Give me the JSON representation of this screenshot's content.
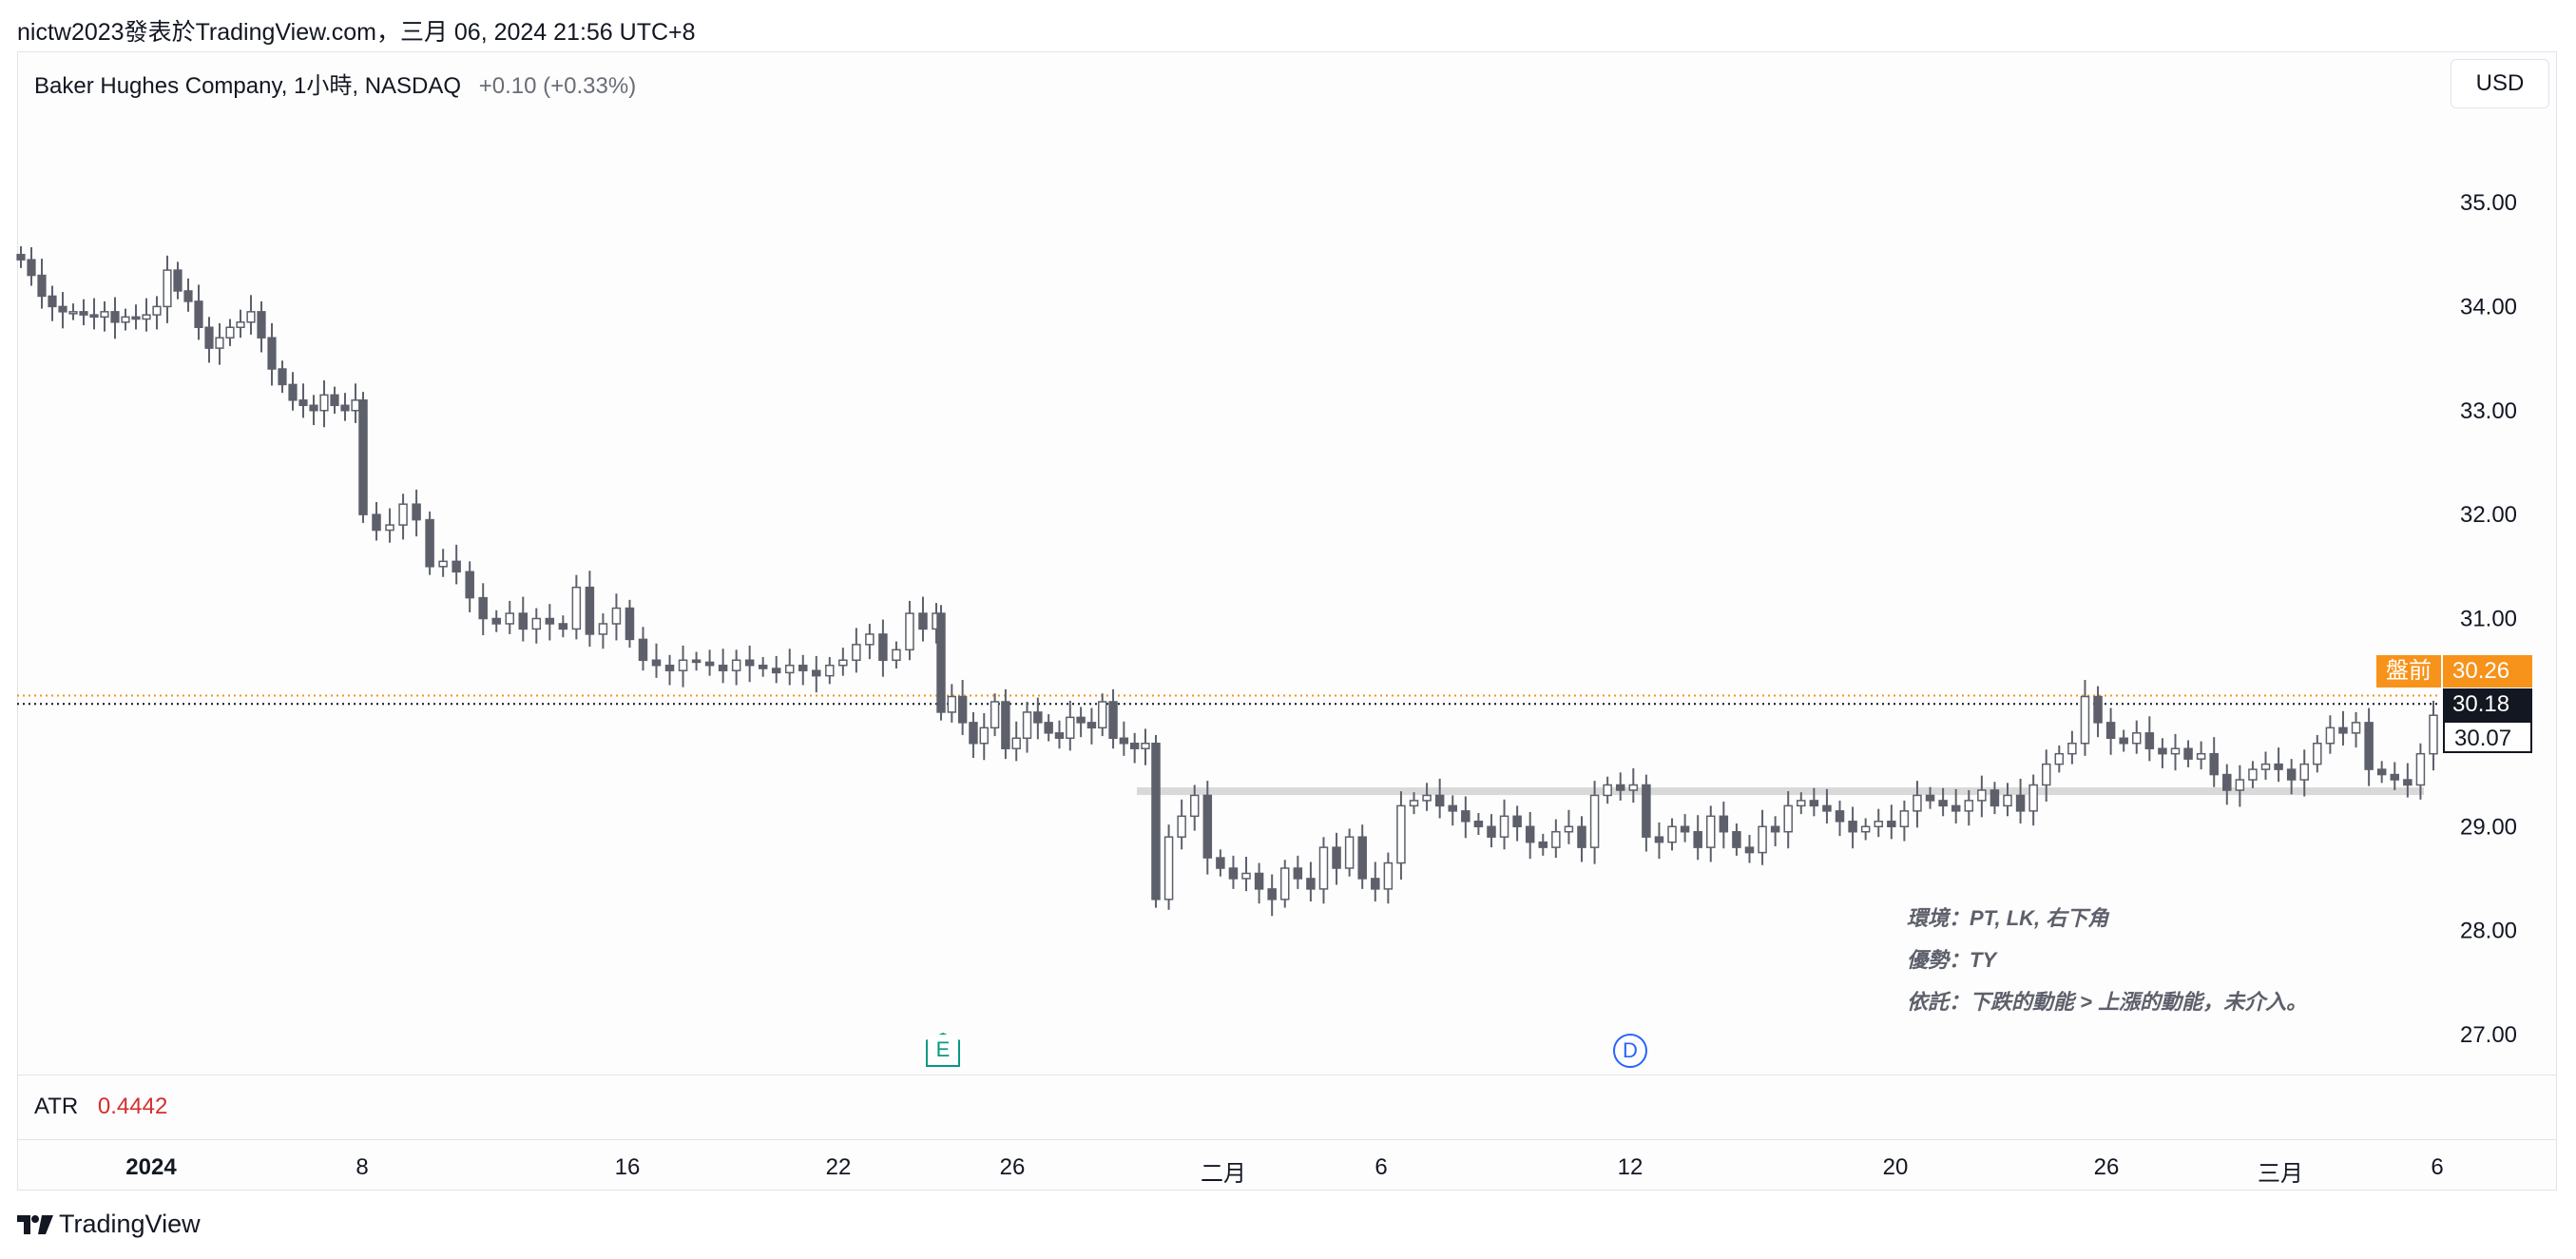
{
  "header": {
    "publisher": "nictw2023發表於TradingView.com，三月 06, 2024 21:56 UTC+8"
  },
  "legend": {
    "symbol": "Baker Hughes Company, 1小時, NASDAQ",
    "change": "+0.10 (+0.33%)"
  },
  "currency_button": "USD",
  "indicator": {
    "name": "ATR",
    "value": "0.4442"
  },
  "notes": {
    "line1": "環境：PT, LK, 右下角",
    "line2": "優勢：TY",
    "line3": "依託：下跌的動能 > 上漲的動能，未介入。"
  },
  "events": {
    "earnings": "E",
    "dividend": "D"
  },
  "tags": {
    "premarket_label": "盤前",
    "premarket_price": "30.26",
    "last_price": "30.18",
    "close_price": "30.07"
  },
  "footer": {
    "brand": "TradingView"
  },
  "colors": {
    "candle_body": "#5d606b",
    "candle_up_fill": "#ffffff",
    "premarket_line": "#f7931a",
    "last_line": "#131722",
    "zone": "#d9d9d9",
    "atr_value": "#d32f2f"
  },
  "chart_data": {
    "type": "candlestick",
    "title": "Baker Hughes Company, 1小時, NASDAQ",
    "ylim": [
      26.6,
      35.9
    ],
    "y_ticks": [
      "35.00",
      "34.00",
      "33.00",
      "32.00",
      "31.00",
      "29.00",
      "28.00",
      "27.00"
    ],
    "x_labels": [
      "2024",
      "8",
      "16",
      "22",
      "26",
      "二月",
      "6",
      "12",
      "20",
      "26",
      "三月",
      "6"
    ],
    "horizontal_levels": [
      {
        "name": "盤前",
        "value": 30.26
      },
      {
        "name": "last",
        "value": 30.18
      }
    ],
    "zone_level": 29.34,
    "series": [
      {
        "segment": "jan-early",
        "close": [
          34.45,
          34.3,
          34.1,
          34.0,
          33.95,
          33.95,
          33.92,
          33.9,
          33.95,
          33.85,
          33.9,
          33.88,
          33.92,
          34.0,
          34.35,
          34.15,
          34.05,
          33.8,
          33.6,
          33.7,
          33.8,
          33.85,
          33.95,
          33.7,
          33.4,
          33.25,
          33.1,
          33.05,
          33.0,
          33.15,
          33.05,
          33.0,
          33.1
        ]
      },
      {
        "segment": "jan-gap",
        "close": [
          32.0,
          31.85,
          31.9,
          32.1,
          31.95,
          31.5,
          31.55,
          31.45,
          31.2,
          31.0,
          30.95,
          31.05,
          30.9,
          31.0,
          30.95,
          30.9,
          31.3,
          30.85,
          30.95,
          31.1,
          30.8,
          30.6,
          30.55,
          30.5,
          30.6,
          30.58,
          30.55,
          30.5,
          30.6,
          30.55,
          30.52,
          30.48,
          30.55,
          30.5,
          30.45,
          30.55,
          30.6,
          30.75,
          30.85,
          30.6,
          30.7,
          31.05,
          30.9,
          31.05
        ]
      },
      {
        "segment": "jan-late",
        "close": [
          30.1,
          30.25,
          30.0,
          29.8,
          29.95,
          30.2,
          29.75,
          29.85,
          30.1,
          30.0,
          29.9,
          29.85,
          30.05,
          30.0,
          29.95,
          30.2,
          29.85,
          29.8,
          29.75,
          29.8
        ]
      },
      {
        "segment": "feb",
        "close": [
          28.3,
          28.9,
          29.1,
          29.3,
          28.7,
          28.6,
          28.5,
          28.55,
          28.4,
          28.3,
          28.6,
          28.5,
          28.4,
          28.8,
          28.6,
          28.9,
          28.5,
          28.4,
          28.65,
          29.2,
          29.25,
          29.3,
          29.2,
          29.15,
          29.05,
          29.0,
          28.9,
          29.1,
          29.0,
          28.85,
          28.8,
          28.95,
          29.0,
          28.8,
          29.3,
          29.4,
          29.35,
          29.4,
          28.9,
          28.85,
          29.0,
          28.95,
          28.8,
          29.1,
          28.95,
          28.8,
          28.75,
          29.0,
          28.95,
          29.2,
          29.25,
          29.2,
          29.15,
          29.05,
          28.95,
          29.0,
          29.05,
          29.0,
          29.15,
          29.3,
          29.25,
          29.2,
          29.15,
          29.25,
          29.35,
          29.2,
          29.3,
          29.15,
          29.4,
          29.6,
          29.7,
          29.8,
          30.25,
          30.0,
          29.85,
          29.8,
          29.9,
          29.75,
          29.7,
          29.75,
          29.65,
          29.7,
          29.5,
          29.35,
          29.45,
          29.55,
          29.6,
          29.55,
          29.45,
          29.6,
          29.8,
          29.95,
          29.9,
          30.0,
          29.55,
          29.5,
          29.45,
          29.4,
          29.7,
          30.07
        ]
      }
    ]
  }
}
